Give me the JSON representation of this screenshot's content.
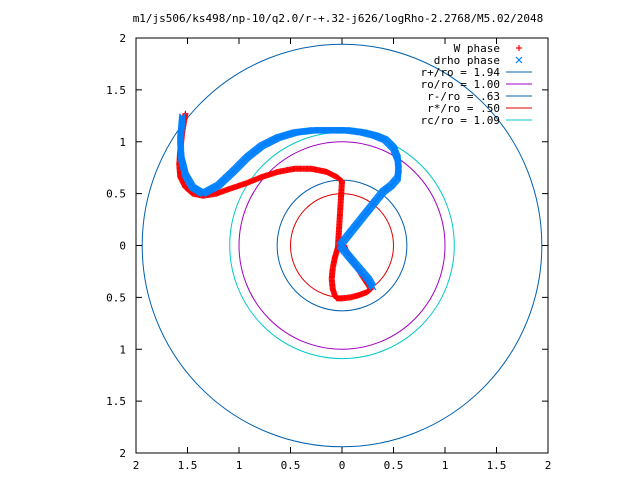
{
  "chart_data": {
    "type": "scatter",
    "title": "m1/js506/ks498/np-10/q2.0/r-+.32-j626/logRho-2.2768/M5.02/2048",
    "xlabel": "",
    "ylabel": "",
    "xlim": [
      -2,
      2
    ],
    "ylim": [
      -2,
      2
    ],
    "x_ticks": [
      "2",
      "1.5",
      "1",
      "0.5",
      "0",
      "0.5",
      "1",
      "1.5",
      "2"
    ],
    "y_ticks": [
      "2",
      "1.5",
      "1",
      "0.5",
      "0",
      "0.5",
      "1",
      "1.5",
      "2"
    ],
    "grid": false,
    "legend_position": "top-right",
    "series": [
      {
        "name": "W phase",
        "kind": "points",
        "marker": "+",
        "color": "#ff0000",
        "x": [
          -1.52,
          -1.55,
          -1.57,
          -1.58,
          -1.57,
          -1.52,
          -1.45,
          -1.35,
          -1.22,
          -1.08,
          -0.93,
          -0.78,
          -0.62,
          -0.46,
          -0.3,
          -0.15,
          -0.05,
          0.0,
          -0.04,
          -0.07,
          -0.09,
          -0.1,
          -0.09,
          -0.07,
          -0.05,
          0.0,
          0.08,
          0.16,
          0.24,
          0.28,
          0.2,
          0.14,
          0.08,
          0.04,
          0.02
        ],
        "y": [
          1.27,
          1.1,
          0.92,
          0.78,
          0.66,
          0.56,
          0.5,
          0.48,
          0.5,
          0.55,
          0.6,
          0.66,
          0.71,
          0.74,
          0.74,
          0.71,
          0.66,
          0.62,
          -0.02,
          -0.12,
          -0.22,
          -0.32,
          -0.42,
          -0.48,
          -0.51,
          -0.51,
          -0.5,
          -0.48,
          -0.45,
          -0.42,
          -0.3,
          -0.2,
          -0.12,
          -0.05,
          0.0
        ]
      },
      {
        "name": "drho phase",
        "kind": "points",
        "marker": "x",
        "color": "#0080ff",
        "x": [
          -1.55,
          -1.57,
          -1.56,
          -1.52,
          -1.45,
          -1.35,
          -1.2,
          -1.05,
          -0.92,
          -0.78,
          -0.62,
          -0.45,
          -0.28,
          -0.12,
          0.05,
          0.2,
          0.32,
          0.42,
          0.5,
          0.54,
          0.55,
          0.54,
          0.48,
          0.4,
          -0.02,
          0.03,
          0.08,
          0.14,
          0.2,
          0.26,
          0.3
        ],
        "y": [
          1.24,
          1.02,
          0.84,
          0.68,
          0.56,
          0.5,
          0.58,
          0.72,
          0.85,
          0.96,
          1.04,
          1.09,
          1.11,
          1.11,
          1.11,
          1.09,
          1.06,
          1.02,
          0.94,
          0.84,
          0.74,
          0.65,
          0.58,
          0.52,
          0.0,
          -0.06,
          -0.12,
          -0.19,
          -0.26,
          -0.33,
          -0.4
        ]
      },
      {
        "name": "r+/ro = 1.94",
        "kind": "circle",
        "radius": 1.94,
        "color": "#0060ad"
      },
      {
        "name": "ro/ro = 1.00",
        "kind": "circle",
        "radius": 1.0,
        "color": "#a000c0"
      },
      {
        "name": "r-/ro = .63",
        "kind": "circle",
        "radius": 0.63,
        "color": "#0060ad"
      },
      {
        "name": "r*/ro = .50",
        "kind": "circle",
        "radius": 0.5,
        "color": "#e00000"
      },
      {
        "name": "rc/ro = 1.09",
        "kind": "circle",
        "radius": 1.09,
        "color": "#00c8c8"
      }
    ]
  }
}
